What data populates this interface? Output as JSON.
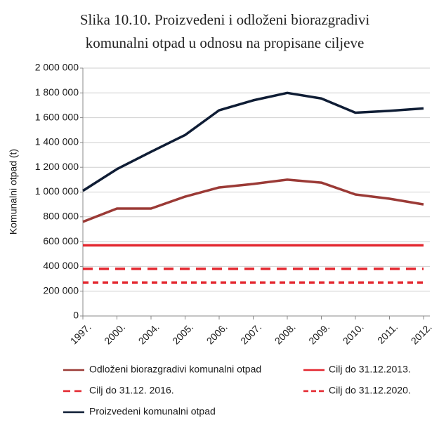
{
  "chart_data": {
    "type": "line",
    "title": [
      "Slika 10.10. Proizvedeni i odloženi biorazgradivi",
      "komunalni otpad u odnosu na propisane ciljeve"
    ],
    "ylabel": "Komunalni otpad (t)",
    "categories": [
      "1997.",
      "2000.",
      "2004.",
      "2005.",
      "2006.",
      "2007.",
      "2008.",
      "2009.",
      "2010.",
      "2011.",
      "2012."
    ],
    "series": [
      {
        "name": "Odloženi biorazgradivi komunalni otpad",
        "color": "#9b3a36",
        "line_style": "solid",
        "values": [
          760000,
          867000,
          867000,
          963000,
          1037000,
          1065000,
          1100000,
          1076000,
          980000,
          946000,
          900000
        ]
      },
      {
        "name": "Cilj do 31.12.2013.",
        "color": "#e3262e",
        "line_style": "solid",
        "values": [
          570000,
          570000,
          570000,
          570000,
          570000,
          570000,
          570000,
          570000,
          570000,
          570000,
          570000
        ]
      },
      {
        "name": "Cilj do 31.12. 2016.",
        "color": "#e3262e",
        "line_style": "long-dash",
        "values": [
          380000,
          380000,
          380000,
          380000,
          380000,
          380000,
          380000,
          380000,
          380000,
          380000,
          380000
        ]
      },
      {
        "name": "Cilj do 31.12.2020.",
        "color": "#e3262e",
        "line_style": "short-dash",
        "values": [
          270000,
          270000,
          270000,
          270000,
          270000,
          270000,
          270000,
          270000,
          270000,
          270000,
          270000
        ]
      },
      {
        "name": "Proizvedeni komunalni otpad",
        "color": "#0f1d35",
        "line_style": "solid",
        "values": [
          1010000,
          1185000,
          1325000,
          1460000,
          1660000,
          1740000,
          1800000,
          1755000,
          1640000,
          1655000,
          1675000
        ]
      }
    ],
    "ylim": [
      0,
      2000000
    ],
    "yticks": [
      0,
      {
        "value": 200000,
        "label": "200 000"
      },
      {
        "value": 400000,
        "label": "400 000"
      },
      {
        "value": 600000,
        "label": "600 000"
      },
      {
        "value": 800000,
        "label": "800 000"
      },
      {
        "value": 1000000,
        "label": "1 000 000"
      },
      {
        "value": 1200000,
        "label": "1 200 000"
      },
      {
        "value": 1400000,
        "label": "1 400 000"
      },
      {
        "value": 1600000,
        "label": "1 600 000"
      },
      {
        "value": 1800000,
        "label": "1 800 000"
      },
      {
        "value": 2000000,
        "label": "2 000 000"
      }
    ],
    "grid": true
  }
}
